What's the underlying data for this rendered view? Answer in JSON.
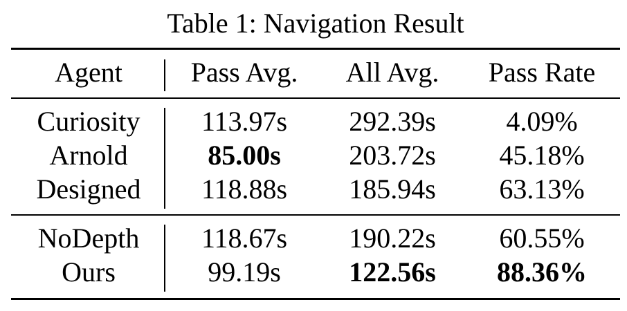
{
  "caption": "Table 1: Navigation Result",
  "headers": [
    "Agent",
    "Pass Avg.",
    "All Avg.",
    "Pass Rate"
  ],
  "groups": [
    [
      {
        "agent": "Curiosity",
        "pass_avg": "113.97s",
        "all_avg": "292.39s",
        "pass_rate": "4.09%"
      },
      {
        "agent": "Arnold",
        "pass_avg": "85.00s",
        "all_avg": "203.72s",
        "pass_rate": "45.18%"
      },
      {
        "agent": "Designed",
        "pass_avg": "118.88s",
        "all_avg": "185.94s",
        "pass_rate": "63.13%"
      }
    ],
    [
      {
        "agent": "NoDepth",
        "pass_avg": "118.67s",
        "all_avg": "190.22s",
        "pass_rate": "60.55%"
      },
      {
        "agent": "Ours",
        "pass_avg": "99.19s",
        "all_avg": "122.56s",
        "pass_rate": "88.36%"
      }
    ]
  ],
  "bold_cells": [
    "groups.0.1.pass_avg",
    "groups.1.1.all_avg",
    "groups.1.1.pass_rate"
  ]
}
